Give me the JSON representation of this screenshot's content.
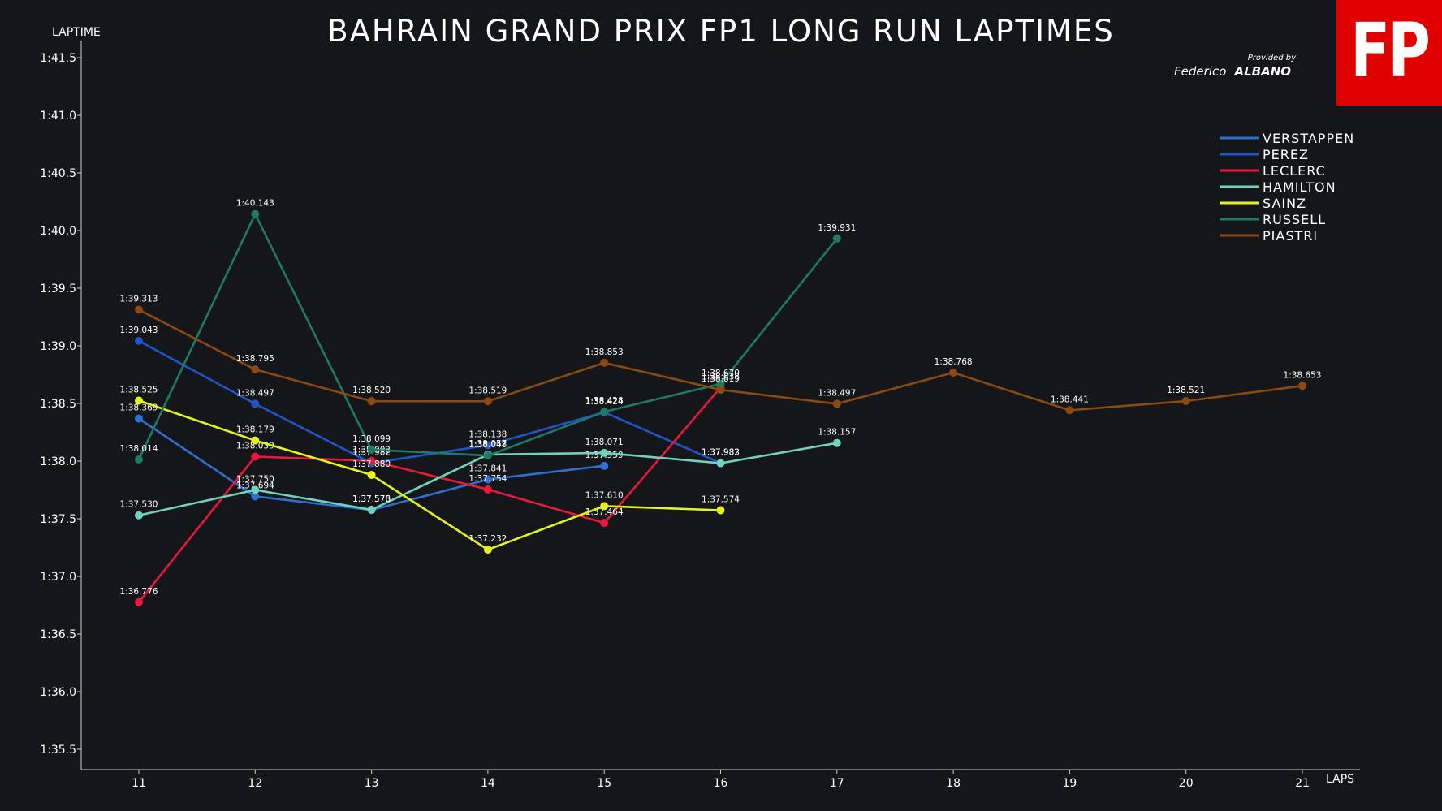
{
  "logo": {
    "text": "FP",
    "color": "#e00000"
  },
  "credit": {
    "provided_by": "Provided by",
    "first_name": "Federico",
    "last_name": "ALBANO"
  },
  "chart_data": {
    "type": "line",
    "title": "BAHRAIN GRAND PRIX FP1 LONG RUN LAPTIMES",
    "xlabel": "LAPS",
    "ylabel": "LAPTIME",
    "x": [
      11,
      12,
      13,
      14,
      15,
      16,
      17,
      18,
      19,
      20,
      21
    ],
    "ylim": [
      95.0,
      101.5
    ],
    "xlim": [
      10.5,
      21.5
    ],
    "yticks": [
      {
        "value": 95.5,
        "label": "1:35.5"
      },
      {
        "value": 96.0,
        "label": "1:36.0"
      },
      {
        "value": 96.5,
        "label": "1:36.5"
      },
      {
        "value": 97.0,
        "label": "1:37.0"
      },
      {
        "value": 97.5,
        "label": "1:37.5"
      },
      {
        "value": 98.0,
        "label": "1:38.0"
      },
      {
        "value": 98.5,
        "label": "1:38.5"
      },
      {
        "value": 99.0,
        "label": "1:39.0"
      },
      {
        "value": 99.5,
        "label": "1:39.5"
      },
      {
        "value": 100.0,
        "label": "1:40.0"
      },
      {
        "value": 100.5,
        "label": "1:40.5"
      },
      {
        "value": 101.0,
        "label": "1:41.0"
      },
      {
        "value": 101.5,
        "label": "1:41.5"
      }
    ],
    "grid": false,
    "legend_position": "top-right",
    "series": [
      {
        "name": "VERSTAPPEN",
        "color": "#2f6fd0",
        "points": [
          {
            "x": 11,
            "y": 98.369,
            "label": "1:38.369"
          },
          {
            "x": 12,
            "y": 97.694,
            "label": "1:37.694"
          },
          {
            "x": 13,
            "y": 97.576,
            "label": "1:37.576"
          },
          {
            "x": 14,
            "y": 97.841,
            "label": "1:37.841"
          },
          {
            "x": 15,
            "y": 97.959,
            "label": "1:37.959"
          }
        ]
      },
      {
        "name": "PEREZ",
        "color": "#1f55c8",
        "points": [
          {
            "x": 11,
            "y": 99.043,
            "label": "1:39.043"
          },
          {
            "x": 12,
            "y": 98.497,
            "label": "1:38.497"
          },
          {
            "x": 13,
            "y": 97.982,
            "label": "1:37.982"
          },
          {
            "x": 14,
            "y": 98.138,
            "label": "1:38.138"
          },
          {
            "x": 15,
            "y": 98.424,
            "label": "1:38.424"
          },
          {
            "x": 16,
            "y": 97.983,
            "label": "1:37.983"
          }
        ]
      },
      {
        "name": "LECLERC",
        "color": "#e8193c",
        "points": [
          {
            "x": 11,
            "y": 96.776,
            "label": "1:36.776"
          },
          {
            "x": 12,
            "y": 98.039,
            "label": "1:38.039"
          },
          {
            "x": 13,
            "y": 98.002,
            "label": "1:38.002"
          },
          {
            "x": 14,
            "y": 97.754,
            "label": "1:37.754"
          },
          {
            "x": 15,
            "y": 97.464,
            "label": "1:37.464"
          },
          {
            "x": 16,
            "y": 98.638,
            "label": "1:38.638"
          }
        ]
      },
      {
        "name": "HAMILTON",
        "color": "#6fd3bd",
        "points": [
          {
            "x": 11,
            "y": 97.53,
            "label": "1:37.530"
          },
          {
            "x": 12,
            "y": 97.75,
            "label": "1:37.750"
          },
          {
            "x": 13,
            "y": 97.578,
            "label": "1:37.578"
          },
          {
            "x": 14,
            "y": 98.057,
            "label": "1:38.057"
          },
          {
            "x": 15,
            "y": 98.071,
            "label": "1:38.071"
          },
          {
            "x": 16,
            "y": 97.982,
            "label": "1:37.982"
          },
          {
            "x": 17,
            "y": 98.157,
            "label": "1:38.157"
          }
        ]
      },
      {
        "name": "SAINZ",
        "color": "#e4f51c",
        "points": [
          {
            "x": 11,
            "y": 98.525,
            "label": "1:38.525"
          },
          {
            "x": 12,
            "y": 98.179,
            "label": "1:38.179"
          },
          {
            "x": 13,
            "y": 97.88,
            "label": "1:37.880"
          },
          {
            "x": 14,
            "y": 97.232,
            "label": "1:37.232"
          },
          {
            "x": 15,
            "y": 97.61,
            "label": "1:37.610"
          },
          {
            "x": 16,
            "y": 97.574,
            "label": "1:37.574"
          }
        ]
      },
      {
        "name": "RUSSELL",
        "color": "#1e7a66",
        "points": [
          {
            "x": 11,
            "y": 98.014,
            "label": "1:38.014"
          },
          {
            "x": 12,
            "y": 100.143,
            "label": "1:40.143"
          },
          {
            "x": 13,
            "y": 98.099,
            "label": "1:38.099"
          },
          {
            "x": 14,
            "y": 98.048,
            "label": "1:38.048"
          },
          {
            "x": 15,
            "y": 98.428,
            "label": "1:38.428"
          },
          {
            "x": 16,
            "y": 98.67,
            "label": "1:38.670"
          },
          {
            "x": 17,
            "y": 99.931,
            "label": "1:39.931"
          }
        ]
      },
      {
        "name": "PIASTRI",
        "color": "#8b4a14",
        "points": [
          {
            "x": 11,
            "y": 99.313,
            "label": "1:39.313"
          },
          {
            "x": 12,
            "y": 98.795,
            "label": "1:38.795"
          },
          {
            "x": 13,
            "y": 98.52,
            "label": "1:38.520"
          },
          {
            "x": 14,
            "y": 98.519,
            "label": "1:38.519"
          },
          {
            "x": 15,
            "y": 98.853,
            "label": "1:38.853"
          },
          {
            "x": 16,
            "y": 98.619,
            "label": "1:38.619"
          },
          {
            "x": 17,
            "y": 98.497,
            "label": "1:38.497"
          },
          {
            "x": 18,
            "y": 98.768,
            "label": "1:38.768"
          },
          {
            "x": 19,
            "y": 98.441,
            "label": "1:38.441"
          },
          {
            "x": 20,
            "y": 98.521,
            "label": "1:38.521"
          },
          {
            "x": 21,
            "y": 98.653,
            "label": "1:38.653"
          }
        ]
      }
    ]
  }
}
